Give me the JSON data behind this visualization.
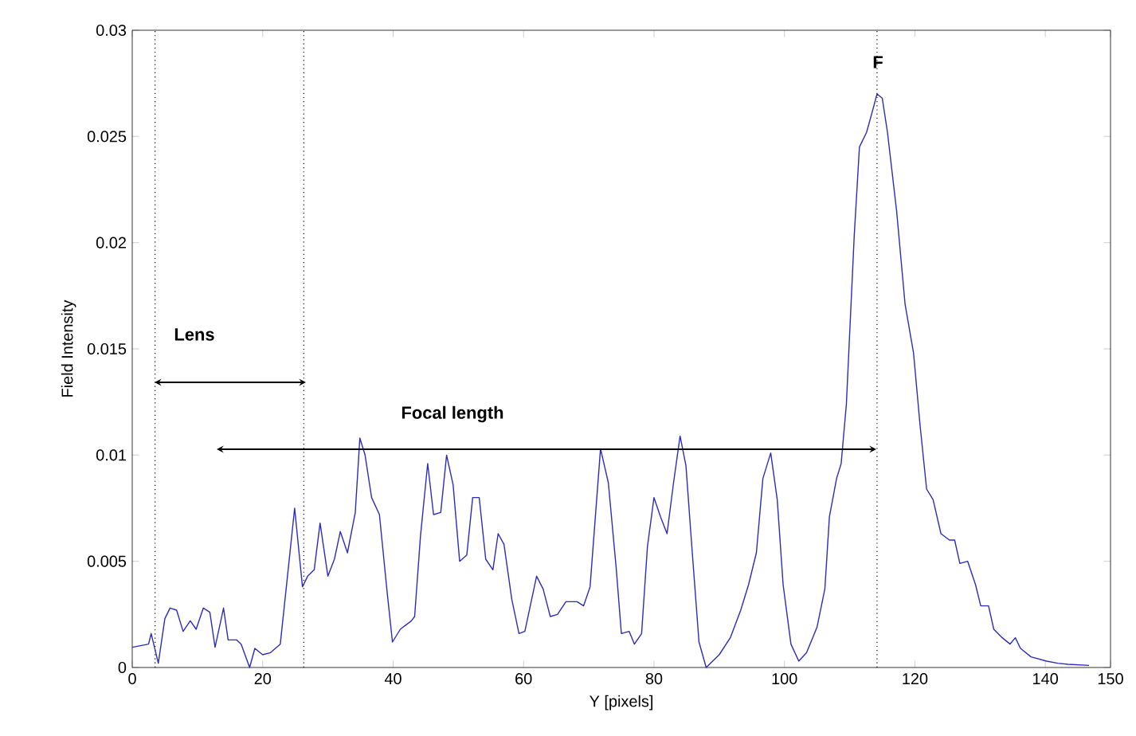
{
  "chart_data": {
    "type": "line",
    "xlabel": "Y [pixels]",
    "ylabel": "Field Intensity",
    "xlim": [
      0,
      150
    ],
    "ylim": [
      0,
      0.03
    ],
    "xticks": [
      0,
      20,
      40,
      60,
      80,
      100,
      120,
      140,
      150
    ],
    "yticks": [
      0,
      0.005,
      0.01,
      0.015,
      0.02,
      0.025,
      0.03
    ],
    "grid": false,
    "marker": "none",
    "line_style": "solid",
    "series": [
      {
        "color": "#2b2bc0",
        "x": [
          0,
          2.5,
          2.9,
          4,
          5,
          5.8,
          6.8,
          7.8,
          8.9,
          9.8,
          10.9,
          11.9,
          12.7,
          14,
          14.7,
          16,
          16.7,
          18,
          18.8,
          20,
          21.2,
          22.7,
          23.7,
          24.9,
          26.1,
          26.9,
          27.9,
          28.8,
          30,
          31,
          31.9,
          33,
          34.2,
          34.9,
          35.7,
          36.7,
          37.9,
          39.1,
          39.9,
          41.1,
          42.8,
          43.3,
          44.2,
          45.3,
          46.2,
          47.3,
          48.2,
          49.2,
          50.2,
          51.3,
          52.2,
          53.2,
          54.2,
          55.3,
          56.1,
          57,
          58.2,
          59.3,
          60.2,
          62,
          63,
          64.1,
          65.2,
          66.5,
          68.2,
          69.2,
          70.2,
          71.8,
          73,
          74.2,
          75,
          76.2,
          77,
          78.1,
          79,
          80,
          81,
          82,
          83,
          84,
          84.9,
          85.8,
          86.9,
          88,
          90,
          91.7,
          93.3,
          94.5,
          95.7,
          96.7,
          97.9,
          98.9,
          99.8,
          101,
          102.2,
          103.4,
          105,
          106.2,
          106.9,
          108,
          108.7,
          109.5,
          110.7,
          111.5,
          112.6,
          113.5,
          114.2,
          115,
          115.8,
          117.2,
          118.5,
          119.8,
          120.8,
          121.8,
          122.8,
          124,
          125.3,
          126.1,
          126.9,
          128.1,
          129.3,
          130.1,
          131.3,
          132.1,
          133.4,
          134.6,
          135.4,
          136.2,
          137.8,
          140.2,
          141.9,
          143.5,
          146.7
        ],
        "values": [
          0.00095,
          0.0011,
          0.0016,
          0.0002,
          0.0023,
          0.0028,
          0.0027,
          0.0017,
          0.0022,
          0.0018,
          0.0028,
          0.0026,
          0.00095,
          0.0028,
          0.0013,
          0.0013,
          0.0011,
          0,
          0.0009,
          0.0006,
          0.0007,
          0.0011,
          0.004,
          0.0075,
          0.0038,
          0.0043,
          0.0046,
          0.0068,
          0.0043,
          0.0051,
          0.0064,
          0.0054,
          0.0073,
          0.0108,
          0.01,
          0.008,
          0.0072,
          0.0035,
          0.0012,
          0.0018,
          0.0022,
          0.0024,
          0.0062,
          0.0096,
          0.0072,
          0.0073,
          0.01,
          0.0086,
          0.005,
          0.0053,
          0.008,
          0.008,
          0.0051,
          0.0046,
          0.0063,
          0.0058,
          0.0032,
          0.0016,
          0.0017,
          0.0043,
          0.0037,
          0.0024,
          0.0025,
          0.0031,
          0.0031,
          0.0029,
          0.0038,
          0.0103,
          0.0087,
          0.0047,
          0.0016,
          0.0017,
          0.0011,
          0.0016,
          0.0057,
          0.008,
          0.0071,
          0.0063,
          0.0087,
          0.0109,
          0.0095,
          0.0057,
          0.0012,
          0,
          0.0006,
          0.0014,
          0.0027,
          0.0039,
          0.0054,
          0.0089,
          0.0101,
          0.0079,
          0.0039,
          0.0011,
          0.0003,
          0.0007,
          0.0019,
          0.0037,
          0.0071,
          0.0089,
          0.0096,
          0.0124,
          0.0203,
          0.0245,
          0.0252,
          0.0262,
          0.027,
          0.0268,
          0.0252,
          0.0215,
          0.0171,
          0.0148,
          0.0114,
          0.0084,
          0.0079,
          0.0063,
          0.006,
          0.006,
          0.0049,
          0.005,
          0.0039,
          0.0029,
          0.0029,
          0.0018,
          0.0014,
          0.0011,
          0.0014,
          0.0009,
          0.0005,
          0.0003,
          0.0002,
          0.00015,
          0.0001
        ]
      }
    ],
    "ref_lines": [
      {
        "axis": "x",
        "value": 3.5,
        "color": "#000000",
        "line_style": "dotted"
      },
      {
        "axis": "x",
        "value": 26.3,
        "color": "#000000",
        "line_style": "dotted"
      },
      {
        "axis": "x",
        "value": 114.2,
        "color": "#000000",
        "line_style": "dotted"
      }
    ],
    "annotations": [
      "Lens",
      "Focal length",
      "F"
    ]
  }
}
